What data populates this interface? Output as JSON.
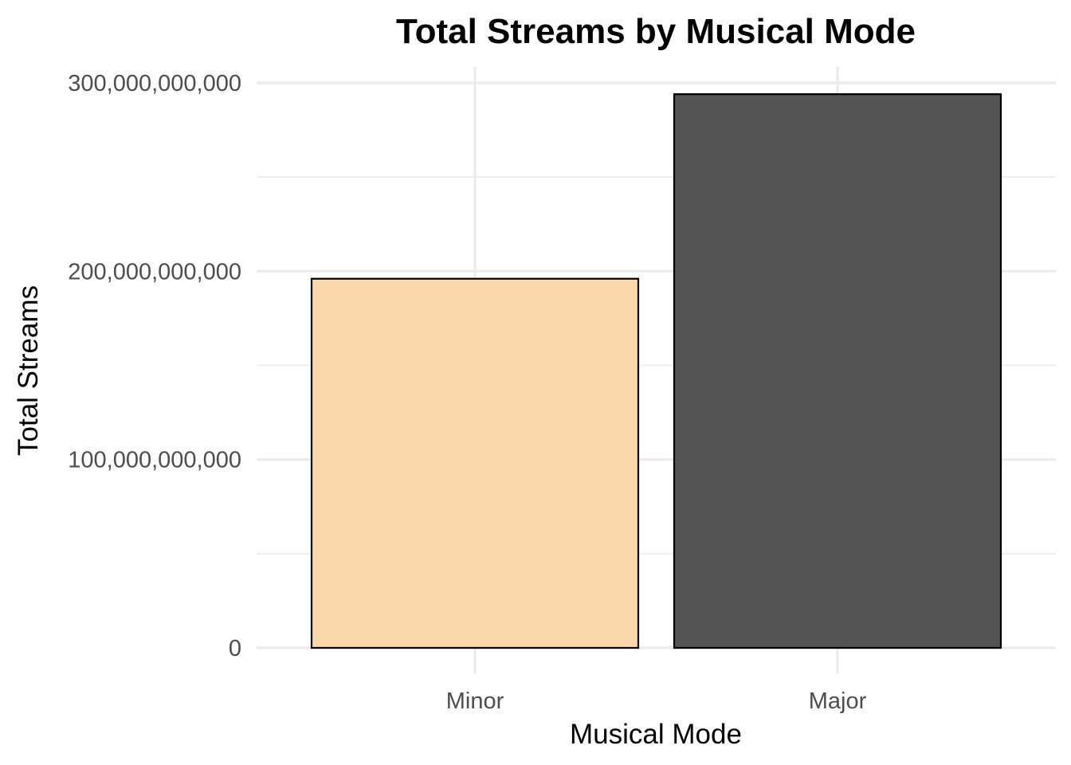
{
  "chart_data": {
    "type": "bar",
    "title": "Total Streams by Musical Mode",
    "xlabel": "Musical Mode",
    "ylabel": "Total Streams",
    "categories": [
      "Minor",
      "Major"
    ],
    "values": [
      196000000000,
      294000000000
    ],
    "bar_colors": [
      "#f9d6a5",
      "#4e4e50"
    ],
    "bar_outline_color": "#000000",
    "ylim": [
      0,
      300000000000
    ],
    "y_ticks": [
      0,
      100000000000,
      200000000000,
      300000000000
    ],
    "y_tick_labels": [
      "0",
      "100,000,000,000",
      "200,000,000,000",
      "300,000,000,000"
    ],
    "grid": true,
    "legend": "none"
  }
}
